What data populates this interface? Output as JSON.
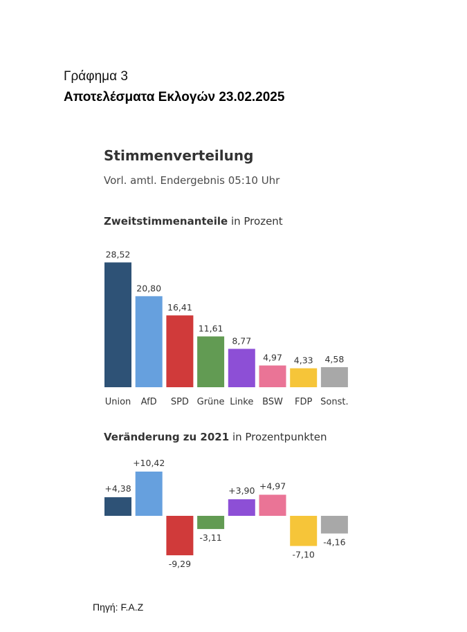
{
  "document": {
    "figure_label": "Γράφημα 3",
    "figure_title": "Αποτελέσματα Εκλογών 23.02.2025",
    "source": "Πηγή: F.A.Z"
  },
  "chart_data": [
    {
      "type": "bar",
      "title": "Stimmenverteilung",
      "subtitle": "Vorl. amtl. Endergebnis 05:10 Uhr",
      "section_title_bold": "Zweitstimmenanteile",
      "section_title_rest": " in Prozent",
      "categories": [
        "Union",
        "AfD",
        "SPD",
        "Grüne",
        "Linke",
        "BSW",
        "FDP",
        "Sonst."
      ],
      "values": [
        28.52,
        20.8,
        16.41,
        11.61,
        8.77,
        4.97,
        4.33,
        4.58
      ],
      "value_labels": [
        "28,52",
        "20,80",
        "16,41",
        "11,61",
        "8,77",
        "4,97",
        "4,33",
        "4,58"
      ],
      "colors": [
        "#2e5276",
        "#66a0de",
        "#d03a3a",
        "#629b53",
        "#8d4fd6",
        "#ea7496",
        "#f6c539",
        "#a8a8a8"
      ],
      "ylim": [
        0,
        30
      ],
      "grid": false,
      "legend": "none"
    },
    {
      "type": "bar",
      "section_title_bold": "Veränderung zu 2021",
      "section_title_rest": " in Prozentpunkten",
      "categories": [
        "Union",
        "AfD",
        "SPD",
        "Grüne",
        "Linke",
        "BSW",
        "FDP",
        "Sonst."
      ],
      "values": [
        4.38,
        10.42,
        -9.29,
        -3.11,
        3.9,
        4.97,
        -7.1,
        -4.16
      ],
      "value_labels": [
        "+4,38",
        "+10,42",
        "-9,29",
        "-3,11",
        "+3,90",
        "+4,97",
        "-7,10",
        "-4,16"
      ],
      "colors": [
        "#2e5276",
        "#66a0de",
        "#d03a3a",
        "#629b53",
        "#8d4fd6",
        "#ea7496",
        "#f6c539",
        "#a8a8a8"
      ],
      "ylim": [
        -10,
        11
      ],
      "grid": false,
      "legend": "none"
    }
  ]
}
